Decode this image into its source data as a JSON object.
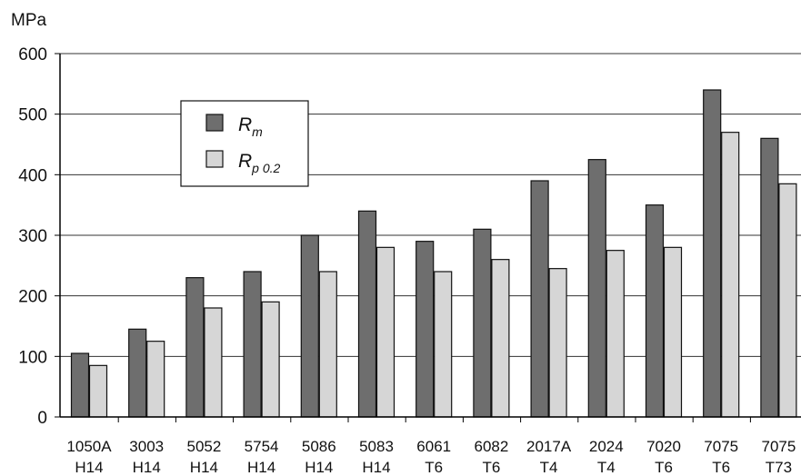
{
  "chart_data": {
    "type": "bar",
    "ylabel": "MPa",
    "ylim": [
      0,
      600
    ],
    "yticks": [
      0,
      100,
      200,
      300,
      400,
      500,
      600
    ],
    "grid": true,
    "legend_position": "top-left",
    "categories": [
      [
        "1050A",
        "H14"
      ],
      [
        "3003",
        "H14"
      ],
      [
        "5052",
        "H14"
      ],
      [
        "5754",
        "H14"
      ],
      [
        "5086",
        "H14"
      ],
      [
        "5083",
        "H14"
      ],
      [
        "6061",
        "T6"
      ],
      [
        "6082",
        "T6"
      ],
      [
        "2017A",
        "T4"
      ],
      [
        "2024",
        "T4"
      ],
      [
        "7020",
        "T6"
      ],
      [
        "7075",
        "T6"
      ],
      [
        "7075",
        "T73"
      ]
    ],
    "series": [
      {
        "name": "R_m",
        "legend_main": "R",
        "legend_sub": "m",
        "color": "#6e6e6e",
        "values": [
          105,
          145,
          230,
          240,
          300,
          340,
          290,
          310,
          390,
          425,
          350,
          540,
          460
        ]
      },
      {
        "name": "R_p0.2",
        "legend_main": "R",
        "legend_sub": "p 0.2",
        "color": "#d6d6d6",
        "values": [
          85,
          125,
          180,
          190,
          240,
          280,
          240,
          260,
          245,
          275,
          280,
          470,
          385
        ]
      }
    ]
  }
}
